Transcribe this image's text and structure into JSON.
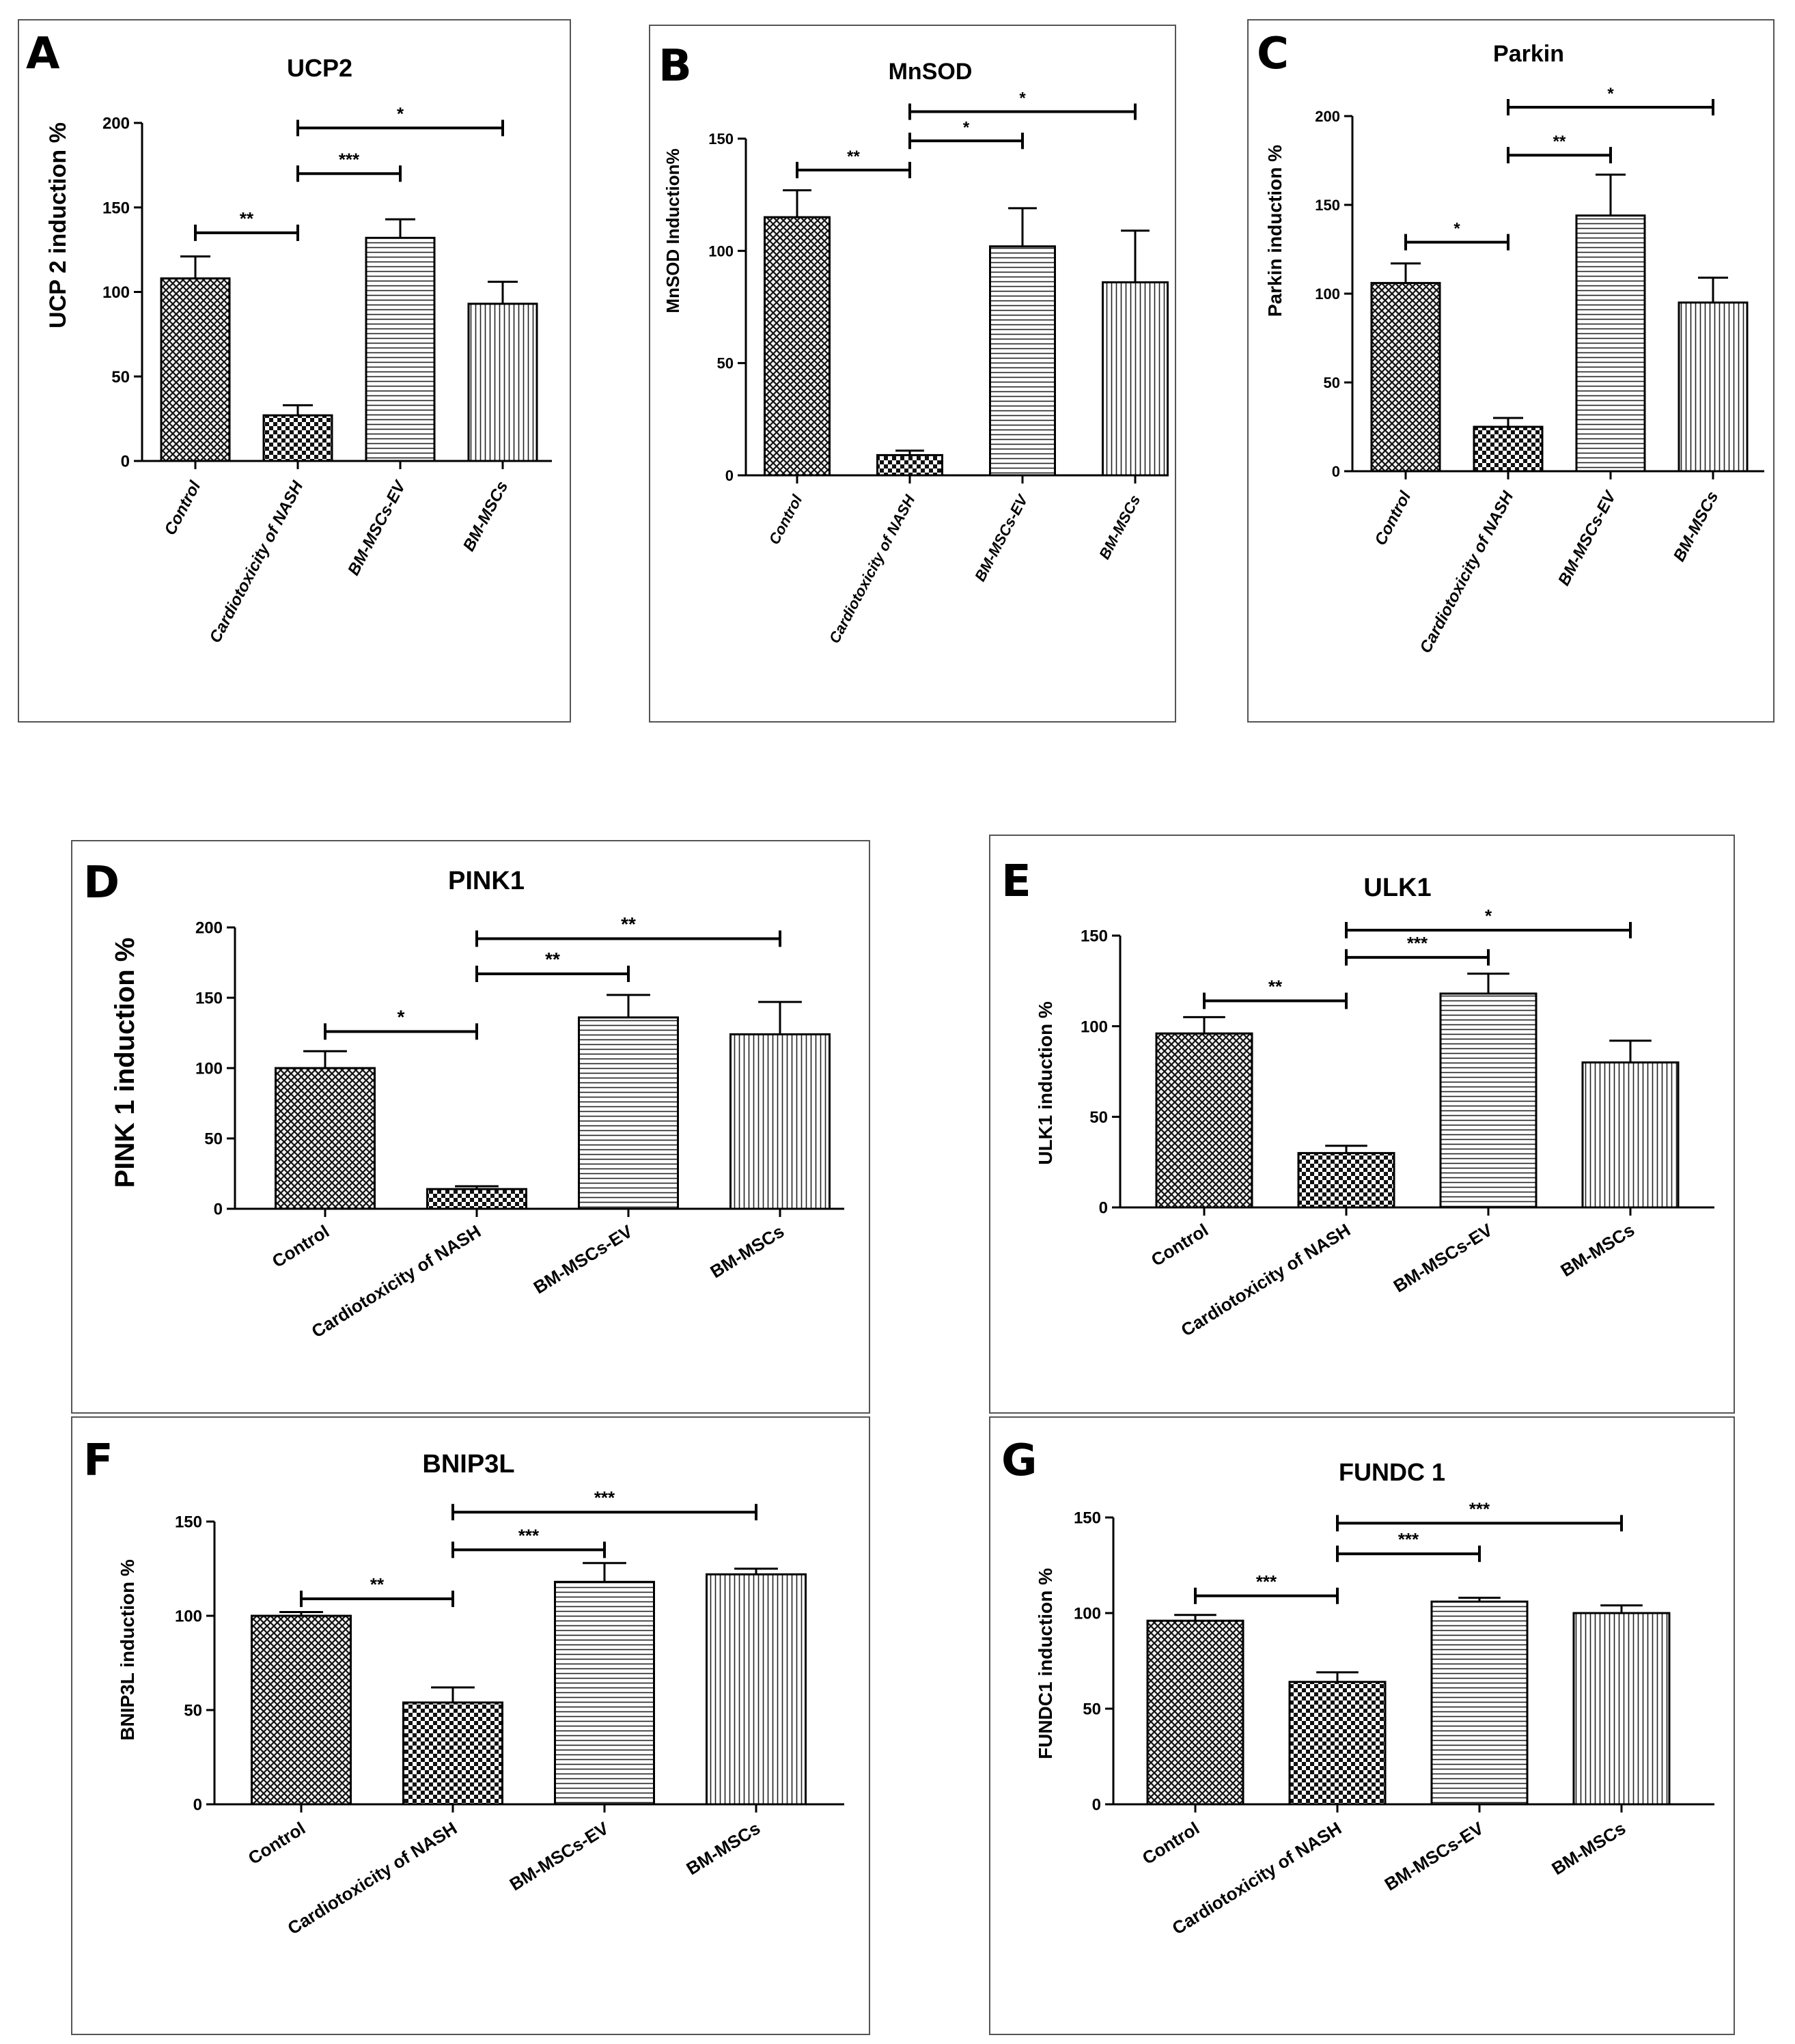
{
  "chart_data": [
    {
      "panel": "A",
      "title": "UCP2",
      "type": "bar",
      "ylabel": "UCP 2 induction %",
      "categories": [
        "Control",
        "Cardiotoxicity of NASH",
        "BM-MSCs-EV",
        "BM-MSCs"
      ],
      "values": [
        108,
        27,
        132,
        93
      ],
      "errors": [
        13,
        6,
        11,
        13
      ],
      "ylim": [
        0,
        200
      ],
      "yticks": [
        0,
        50,
        100,
        150,
        200
      ],
      "significance": [
        {
          "from": 0,
          "to": 1,
          "y": 135,
          "label": "**"
        },
        {
          "from": 1,
          "to": 2,
          "y": 170,
          "label": "***"
        },
        {
          "from": 1,
          "to": 3,
          "y": 197,
          "label": "*"
        }
      ]
    },
    {
      "panel": "B",
      "title": "MnSOD",
      "type": "bar",
      "ylabel": "MnSOD Induction%",
      "categories": [
        "Control",
        "Cardiotoxicity of NASH",
        "BM-MSCs-EV",
        "BM-MSCs"
      ],
      "values": [
        115,
        9,
        102,
        86
      ],
      "errors": [
        12,
        2,
        17,
        23
      ],
      "ylim": [
        0,
        150
      ],
      "yticks": [
        0,
        50,
        100,
        150
      ],
      "significance": [
        {
          "from": 0,
          "to": 1,
          "y": 136,
          "label": "**"
        },
        {
          "from": 1,
          "to": 2,
          "y": 149,
          "label": "*"
        },
        {
          "from": 1,
          "to": 3,
          "y": 162,
          "label": "*"
        }
      ]
    },
    {
      "panel": "C",
      "title": "Parkin",
      "type": "bar",
      "ylabel": "Parkin induction %",
      "categories": [
        "Control",
        "Cardiotoxicity of NASH",
        "BM-MSCs-EV",
        "BM-MSCs"
      ],
      "values": [
        106,
        25,
        144,
        95
      ],
      "errors": [
        11,
        5,
        23,
        14
      ],
      "ylim": [
        0,
        200
      ],
      "yticks": [
        0,
        50,
        100,
        150,
        200
      ],
      "significance": [
        {
          "from": 0,
          "to": 1,
          "y": 129,
          "label": "*"
        },
        {
          "from": 1,
          "to": 2,
          "y": 178,
          "label": "**"
        },
        {
          "from": 1,
          "to": 3,
          "y": 205,
          "label": "*"
        }
      ]
    },
    {
      "panel": "D",
      "title": "PINK1",
      "type": "bar",
      "ylabel": "PINK 1 induction %",
      "categories": [
        "Control",
        "Cardiotoxicity of NASH",
        "BM-MSCs-EV",
        "BM-MSCs"
      ],
      "values": [
        100,
        14,
        136,
        124
      ],
      "errors": [
        12,
        2,
        16,
        23
      ],
      "ylim": [
        0,
        200
      ],
      "yticks": [
        0,
        50,
        100,
        150,
        200
      ],
      "significance": [
        {
          "from": 0,
          "to": 1,
          "y": 126,
          "label": "*"
        },
        {
          "from": 1,
          "to": 2,
          "y": 167,
          "label": "**"
        },
        {
          "from": 1,
          "to": 3,
          "y": 192,
          "label": "**"
        }
      ]
    },
    {
      "panel": "E",
      "title": "ULK1",
      "type": "bar",
      "ylabel": "ULK1 induction %",
      "categories": [
        "Control",
        "Cardiotoxicity of NASH",
        "BM-MSCs-EV",
        "BM-MSCs"
      ],
      "values": [
        96,
        30,
        118,
        80
      ],
      "errors": [
        9,
        4,
        11,
        12
      ],
      "ylim": [
        0,
        150
      ],
      "yticks": [
        0,
        50,
        100,
        150
      ],
      "significance": [
        {
          "from": 0,
          "to": 1,
          "y": 114,
          "label": "**"
        },
        {
          "from": 1,
          "to": 2,
          "y": 138,
          "label": "***"
        },
        {
          "from": 1,
          "to": 3,
          "y": 153,
          "label": "*"
        }
      ]
    },
    {
      "panel": "F",
      "title": "BNIP3L",
      "type": "bar",
      "ylabel": "BNIP3L induction %",
      "categories": [
        "Control",
        "Cardiotoxicity of NASH",
        "BM-MSCs-EV",
        "BM-MSCs"
      ],
      "values": [
        100,
        54,
        118,
        122
      ],
      "errors": [
        2,
        8,
        10,
        3
      ],
      "ylim": [
        0,
        150
      ],
      "yticks": [
        0,
        50,
        100,
        150
      ],
      "significance": [
        {
          "from": 0,
          "to": 1,
          "y": 109,
          "label": "**"
        },
        {
          "from": 1,
          "to": 2,
          "y": 135,
          "label": "***"
        },
        {
          "from": 1,
          "to": 3,
          "y": 155,
          "label": "***"
        }
      ]
    },
    {
      "panel": "G",
      "title": "FUNDC 1",
      "type": "bar",
      "ylabel": "FUNDC1 induction %",
      "categories": [
        "Control",
        "Cardiotoxicity of NASH",
        "BM-MSCs-EV",
        "BM-MSCs"
      ],
      "values": [
        96,
        64,
        106,
        100
      ],
      "errors": [
        3,
        5,
        2,
        4
      ],
      "ylim": [
        0,
        150
      ],
      "yticks": [
        0,
        50,
        100,
        150
      ],
      "significance": [
        {
          "from": 0,
          "to": 1,
          "y": 109,
          "label": "***"
        },
        {
          "from": 1,
          "to": 2,
          "y": 131,
          "label": "***"
        },
        {
          "from": 1,
          "to": 3,
          "y": 147,
          "label": "***"
        }
      ]
    }
  ]
}
